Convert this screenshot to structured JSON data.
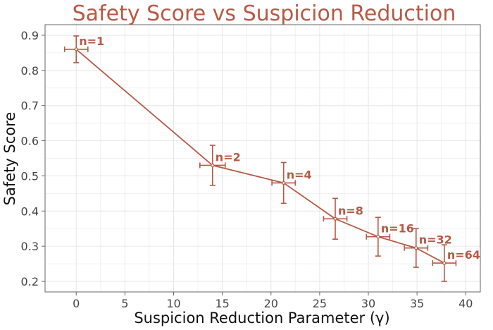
{
  "chart_data": {
    "type": "line",
    "title": "Safety Score vs Suspicion Reduction",
    "xlabel": "Suspicion Reduction Parameter (γ)",
    "ylabel": "Safety Score",
    "xlim": [
      -3.2,
      41.5
    ],
    "ylim": [
      0.17,
      0.93
    ],
    "xticks": [
      0,
      5,
      10,
      15,
      20,
      25,
      30,
      35,
      40
    ],
    "yticks": [
      0.2,
      0.3,
      0.4,
      0.5,
      0.6,
      0.7,
      0.8,
      0.9
    ],
    "xtick_labels": [
      "0",
      "5",
      "10",
      "15",
      "20",
      "25",
      "30",
      "35",
      "40"
    ],
    "ytick_labels": [
      "0.2",
      "0.3",
      "0.4",
      "0.5",
      "0.6",
      "0.7",
      "0.8",
      "0.9"
    ],
    "grid": true,
    "color": "#b55a45",
    "series": [
      {
        "name": "Safety Score",
        "points": [
          {
            "label": "n=1",
            "x": 0.0,
            "y": 0.86,
            "xerr": 1.2,
            "yerr": 0.038
          },
          {
            "label": "n=2",
            "x": 14.0,
            "y": 0.53,
            "xerr": 1.3,
            "yerr": 0.057
          },
          {
            "label": "n=4",
            "x": 21.3,
            "y": 0.48,
            "xerr": 1.2,
            "yerr": 0.058
          },
          {
            "label": "n=8",
            "x": 26.6,
            "y": 0.378,
            "xerr": 1.2,
            "yerr": 0.058
          },
          {
            "label": "n=16",
            "x": 31.0,
            "y": 0.327,
            "xerr": 1.2,
            "yerr": 0.055
          },
          {
            "label": "n=32",
            "x": 34.9,
            "y": 0.295,
            "xerr": 1.2,
            "yerr": 0.055
          },
          {
            "label": "n=64",
            "x": 37.8,
            "y": 0.252,
            "xerr": 1.2,
            "yerr": 0.052
          }
        ]
      }
    ]
  }
}
